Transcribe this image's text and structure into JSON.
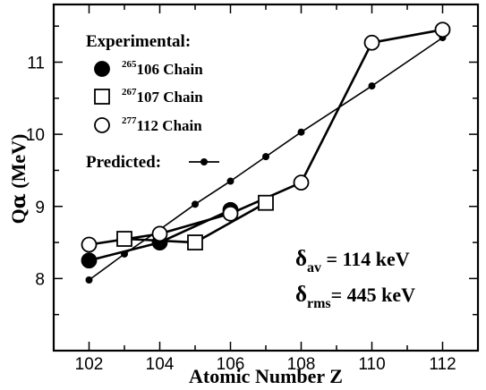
{
  "chart_data": {
    "type": "line",
    "xlabel": "Atomic Number Z",
    "ylabel_main": "Q",
    "ylabel_symbol": "α",
    "ylabel_unit": " (MeV)",
    "xlim": [
      101,
      113
    ],
    "ylim": [
      7,
      11.8
    ],
    "xticks": [
      102,
      104,
      106,
      108,
      110,
      112
    ],
    "yticks": [
      8,
      9,
      10,
      11
    ],
    "xtick_labels": [
      "102",
      "104",
      "106",
      "108",
      "110",
      "112"
    ],
    "ytick_labels": [
      "8",
      "9",
      "10",
      "11"
    ],
    "legend": {
      "title": "Experimental:",
      "entries": [
        {
          "sup": "265",
          "label": "106 Chain"
        },
        {
          "sup": "267",
          "label": "107 Chain"
        },
        {
          "sup": "277",
          "label": "112 Chain"
        }
      ],
      "predicted_label": "Predicted:"
    },
    "series": [
      {
        "name": "265106 Chain",
        "marker": "filled-circle",
        "points": [
          [
            102,
            8.25
          ],
          [
            104,
            8.5
          ],
          [
            106,
            8.95
          ]
        ]
      },
      {
        "name": "267107 Chain",
        "marker": "open-square",
        "points": [
          [
            103,
            8.55
          ],
          [
            105,
            8.5
          ],
          [
            107,
            9.05
          ]
        ]
      },
      {
        "name": "277112 Chain",
        "marker": "open-circle",
        "points": [
          [
            102,
            8.47
          ],
          [
            104,
            8.62
          ],
          [
            106,
            8.9
          ],
          [
            108,
            9.33
          ],
          [
            110,
            11.27
          ],
          [
            112,
            11.45
          ]
        ]
      },
      {
        "name": "Predicted",
        "marker": "small-dot",
        "points": [
          [
            102,
            7.98
          ],
          [
            103,
            8.34
          ],
          [
            104,
            8.68
          ],
          [
            105,
            9.03
          ],
          [
            106,
            9.35
          ],
          [
            107,
            9.69
          ],
          [
            108,
            10.03
          ],
          [
            110,
            10.67
          ],
          [
            112,
            11.34
          ]
        ]
      }
    ],
    "annotations": {
      "delta_av": {
        "symbol": "δ",
        "sub": "av",
        "value": " = 114 keV"
      },
      "delta_rms": {
        "symbol": "δ",
        "sub": "rms",
        "value": "= 445 keV"
      }
    },
    "colors": {
      "foreground": "#000000",
      "background": "#ffffff"
    }
  }
}
